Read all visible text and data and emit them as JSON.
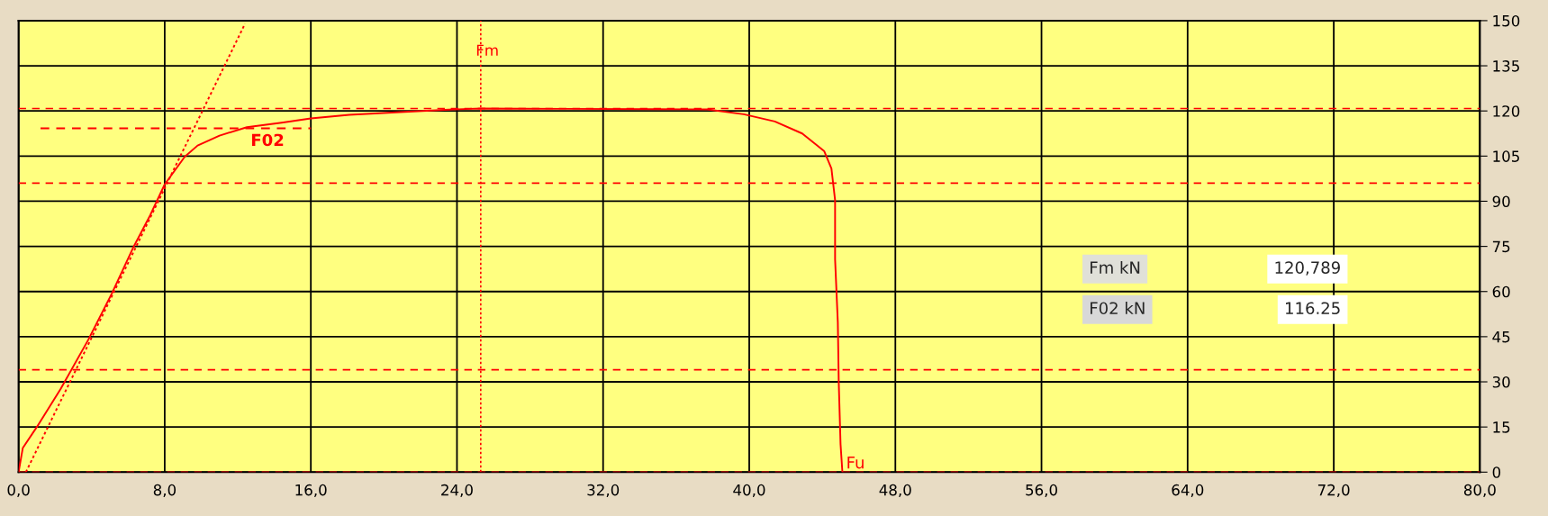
{
  "chart_data": {
    "type": "line",
    "x": [
      0,
      0.23,
      1.0,
      2.3,
      3.8,
      5.1,
      6.3,
      7.2,
      8.0,
      9.1,
      9.8,
      11.0,
      12.5,
      14.4,
      16.0,
      18.1,
      20.9,
      23.8,
      25.3,
      30.0,
      35.0,
      37.7,
      39.7,
      41.4,
      42.9,
      44.1,
      44.5,
      44.7,
      44.7,
      44.85,
      44.9,
      45.0,
      45.1
    ],
    "series": [
      {
        "color": "#ff0000",
        "line_style": "solid",
        "values": [
          0,
          8,
          15,
          27.6,
          43.8,
          59.3,
          74.9,
          85.3,
          95.6,
          104.8,
          108.5,
          111.8,
          114.6,
          116.1,
          117.5,
          118.7,
          119.6,
          120.5,
          120.8,
          120.7,
          120.6,
          120.5,
          118.9,
          116.5,
          112.5,
          106.7,
          100.9,
          90.4,
          70.7,
          49.8,
          30,
          9.2,
          0
        ]
      },
      {
        "color": "#ff0000",
        "line_style": "dotted",
        "x": [
          0.4,
          12.4
        ],
        "values": [
          0,
          149
        ]
      },
      {
        "color": "#ff0000",
        "line_style": "dashed",
        "x": [
          1.2,
          16.0
        ],
        "values": [
          114.2,
          114.2
        ]
      }
    ],
    "xlim": [
      0,
      80
    ],
    "xticks": [
      {
        "value": 0,
        "label": "0,0"
      },
      {
        "value": 8,
        "label": "8,0"
      },
      {
        "value": 16,
        "label": "16,0"
      },
      {
        "value": 24,
        "label": "24,0"
      },
      {
        "value": 32,
        "label": "32,0"
      },
      {
        "value": 40,
        "label": "40,0"
      },
      {
        "value": 48,
        "label": "48,0"
      },
      {
        "value": 56,
        "label": "56,0"
      },
      {
        "value": 64,
        "label": "64,0"
      },
      {
        "value": 72,
        "label": "72,0"
      },
      {
        "value": 80,
        "label": "80,0"
      }
    ],
    "ylim": [
      0,
      150
    ],
    "yticks": [
      0,
      15,
      30,
      45,
      60,
      75,
      90,
      105,
      120,
      135,
      150
    ],
    "grid": true,
    "ref_lines": [
      {
        "axis": "y",
        "value": 120.8,
        "color": "#ff0000",
        "line_style": "dashed"
      },
      {
        "axis": "y",
        "value": 96,
        "color": "#ff0000",
        "line_style": "dashed"
      },
      {
        "axis": "y",
        "value": 34,
        "color": "#ff0000",
        "line_style": "dashed"
      },
      {
        "axis": "y",
        "value": 0,
        "color": "#ff0000",
        "line_style": "dashed"
      },
      {
        "axis": "x",
        "value": 25.3,
        "label": "Fm",
        "color": "#ff0000",
        "line_style": "dotted"
      }
    ],
    "annotations": [
      {
        "text": "F02",
        "x": 12.5,
        "y": 114.2
      },
      {
        "text": "Fu",
        "x": 45.1,
        "y": 0
      },
      "Fm kN",
      "120,789",
      "F02 kN",
      "116.25"
    ]
  }
}
